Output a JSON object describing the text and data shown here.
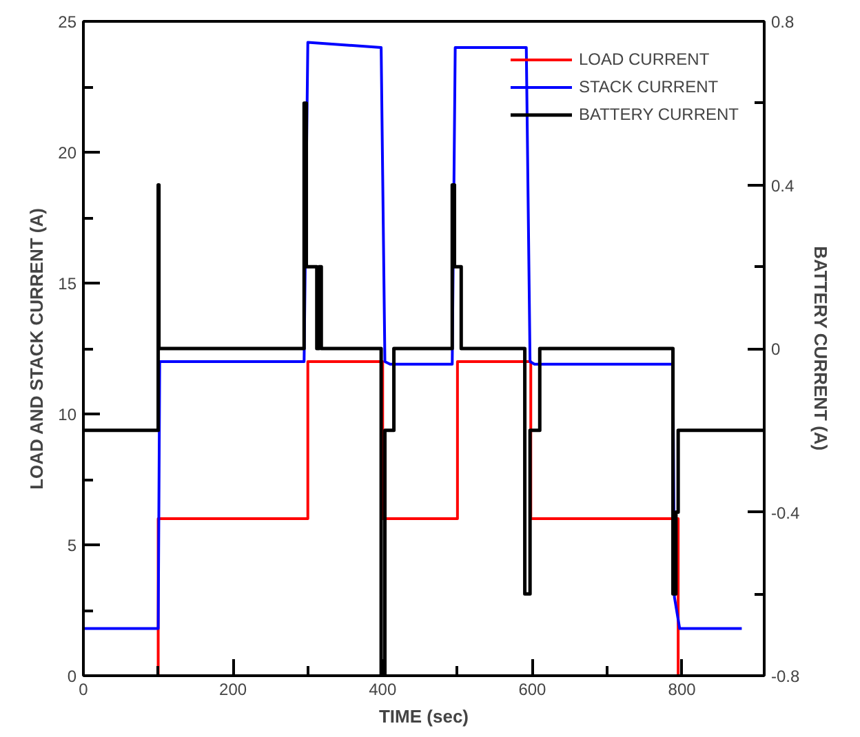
{
  "chart_data": {
    "type": "line",
    "xlabel": "TIME (sec)",
    "ylabel": "LOAD AND STACK CURRENT (A)",
    "y2label": "BATTERY CURRENT (A)",
    "xlim": [
      0,
      910
    ],
    "xticks": [
      0,
      {
        "value": 100,
        "label": null
      },
      200,
      {
        "value": 300,
        "label": null
      },
      400,
      {
        "value": 500,
        "label": null
      },
      600,
      {
        "value": 700,
        "label": null
      },
      800
    ],
    "ylim": [
      0,
      25
    ],
    "yticks": [
      0,
      {
        "value": 2.5,
        "label": null
      },
      5,
      {
        "value": 7.5,
        "label": null
      },
      10,
      {
        "value": 12.5,
        "label": null
      },
      15,
      {
        "value": 17.5,
        "label": null
      },
      20,
      {
        "value": 22.5,
        "label": null
      },
      25
    ],
    "y2lim": [
      -0.8,
      0.8
    ],
    "y2ticks": [
      -0.8,
      {
        "value": -0.6,
        "label": null
      },
      -0.4,
      {
        "value": -0.2,
        "label": null
      },
      0,
      {
        "value": 0.2,
        "label": null
      },
      0.4,
      {
        "value": 0.6,
        "label": null
      },
      0.8
    ],
    "grid": false,
    "legend": "top right",
    "marker": "none",
    "line_style": "solid",
    "series": [
      {
        "name": "LOAD CURRENT",
        "color": "#ff0000",
        "x": [
          0,
          100,
          100,
          300,
          300,
          400,
          400,
          500,
          500,
          598,
          598,
          795,
          795,
          880
        ],
        "values": [
          0,
          0,
          6,
          6,
          12,
          12,
          6,
          6,
          12,
          12,
          6,
          6,
          0,
          0
        ]
      },
      {
        "name": "STACK CURRENT",
        "color": "#0000ff",
        "x": [
          0,
          100,
          102,
          295,
          300,
          398,
          403,
          410,
          493,
          497,
          592,
          597,
          603,
          788,
          790,
          797,
          880
        ],
        "values": [
          1.8,
          1.8,
          12,
          12,
          24.2,
          24,
          12,
          11.9,
          11.9,
          24,
          24,
          12,
          11.9,
          11.9,
          3,
          1.8,
          1.8
        ]
      },
      {
        "name": "BATTERY CURRENT",
        "color": "#000000",
        "axis": "y2",
        "x": [
          0,
          100,
          100,
          101,
          101,
          295,
          295,
          298,
          298,
          312,
          312,
          315,
          315,
          318,
          318,
          398,
          398,
          403,
          403,
          415,
          415,
          493,
          493,
          496,
          496,
          505,
          505,
          590,
          590,
          597,
          597,
          610,
          610,
          788,
          788,
          792,
          792,
          795,
          795,
          910
        ],
        "values": [
          -0.2,
          -0.2,
          0.4,
          0.4,
          0,
          0,
          0.6,
          0.6,
          0.2,
          0.2,
          0,
          0,
          0.2,
          0.2,
          0,
          0,
          -0.8,
          -0.8,
          -0.2,
          -0.2,
          0,
          0,
          0.4,
          0.4,
          0.2,
          0.2,
          0,
          0,
          -0.6,
          -0.6,
          -0.2,
          -0.2,
          0,
          0,
          -0.6,
          -0.6,
          -0.4,
          -0.4,
          -0.2,
          -0.2
        ]
      }
    ]
  }
}
